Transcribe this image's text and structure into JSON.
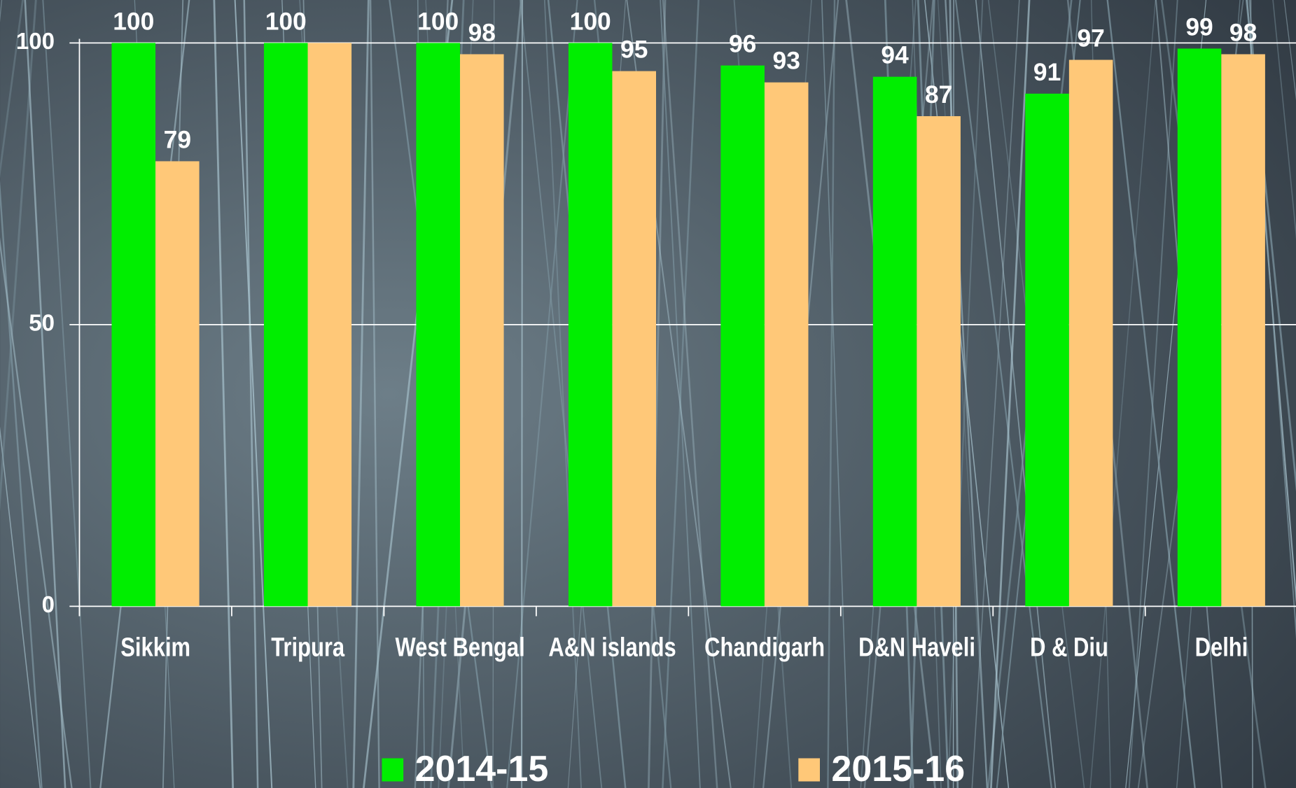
{
  "chart_data": {
    "type": "bar",
    "categories": [
      "Sikkim",
      "Tripura",
      "West Bengal",
      "A&N islands",
      "Chandigarh",
      "D&N Haveli",
      "D &  Diu",
      "Delhi"
    ],
    "series": [
      {
        "name": "2014-15",
        "color": "#00ee00",
        "values": [
          100,
          100,
          100,
          100,
          96,
          94,
          91,
          99
        ]
      },
      {
        "name": "2015-16",
        "color": "#ffc878",
        "values": [
          79,
          100,
          98,
          95,
          93,
          87,
          97,
          98
        ],
        "value_labels": [
          "79",
          null,
          "98",
          "95",
          "93",
          "87",
          "97",
          "98"
        ]
      }
    ],
    "ylim": [
      0,
      100
    ],
    "yticks": [
      0,
      50,
      100
    ],
    "grid": true,
    "legend": "bottom"
  }
}
